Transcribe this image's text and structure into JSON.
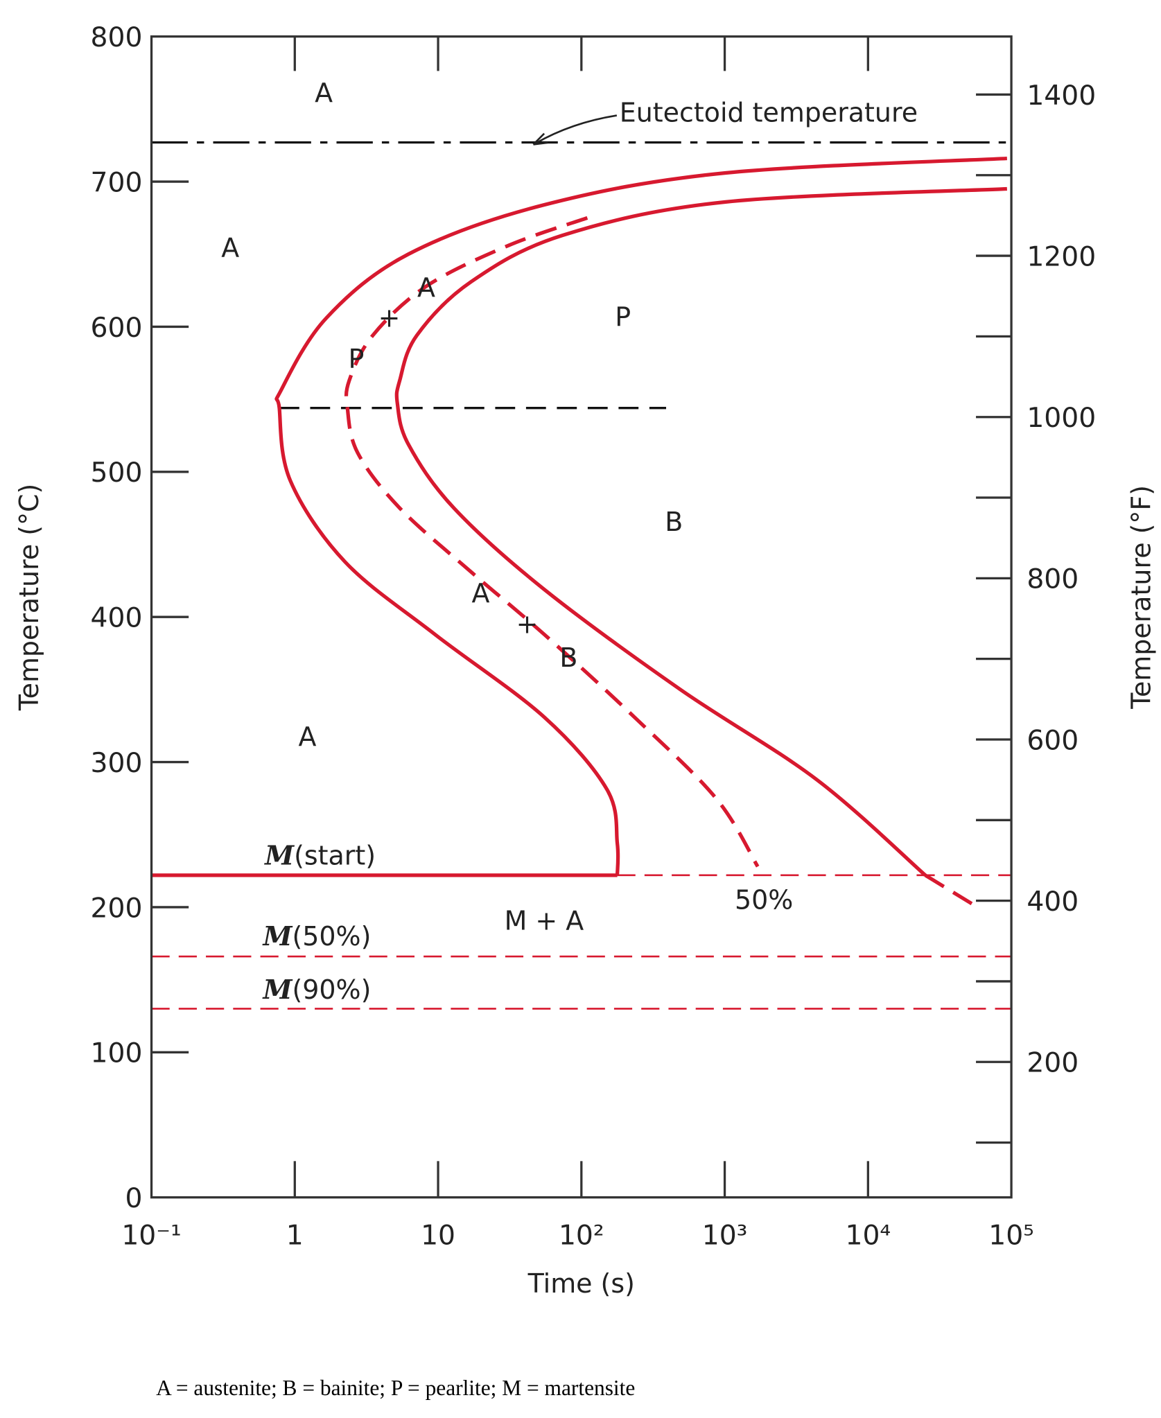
{
  "chart_data": {
    "type": "line",
    "title": "",
    "xlabel": "Time (s)",
    "ylabel": "Temperature (°C)",
    "ylabel_right": "Temperature (°F)",
    "xscale": "log",
    "xlim": [
      0.1,
      100000
    ],
    "ylim": [
      0,
      800
    ],
    "ylim_right_F": [
      32,
      1472
    ],
    "grid": false,
    "x_tick_labels": [
      "10⁻¹",
      "1",
      "10",
      "10²",
      "10³",
      "10⁴",
      "10⁵"
    ],
    "y_tick_labels": [
      "0",
      "100",
      "200",
      "300",
      "400",
      "500",
      "600",
      "700",
      "800"
    ],
    "y_right_tick_labels": [
      "200",
      "400",
      "600",
      "800",
      "1000",
      "1200",
      "1400"
    ],
    "colors": {
      "curve": "#d7192f",
      "reference": "#111111"
    },
    "series": [
      {
        "style": "solid",
        "role": "transformation start",
        "x": [
          93300,
          1014,
          55,
          6.2,
          1.66,
          0.8,
          0.78,
          0.93,
          2.24,
          9.5,
          55,
          151,
          178,
          178
        ],
        "y": [
          716,
          706,
          684,
          650,
          606,
          556,
          544,
          494,
          438,
          388,
          331,
          281,
          244,
          222
        ]
      },
      {
        "style": "solid",
        "role": "transformation finish",
        "x": [
          93300,
          1014,
          74,
          17,
          7.1,
          5.4,
          5.2,
          6.2,
          12.9,
          55,
          490,
          4370,
          25100
        ],
        "y": [
          695,
          686,
          663,
          631,
          594,
          563,
          547,
          519,
          475,
          419,
          350,
          288,
          222
        ]
      },
      {
        "style": "dashed",
        "role": "transformation finish (below M start)",
        "x": [
          25100,
          60300
        ],
        "y": [
          222,
          199
        ]
      },
      {
        "style": "dashed",
        "name": "50%",
        "x": [
          110,
          31,
          8.3,
          3.5,
          2.4,
          2.33,
          2.75,
          5.4,
          17,
          55,
          234,
          870,
          1700
        ],
        "y": [
          675,
          656,
          628,
          594,
          563,
          544,
          513,
          475,
          431,
          388,
          331,
          275,
          228
        ]
      }
    ],
    "reference_lines": [
      {
        "name": "Eutectoid temperature",
        "y": 727,
        "style": "dash-dot",
        "color": "#111111",
        "x": [
          0.1,
          100000
        ]
      },
      {
        "y": 544,
        "style": "dashed",
        "color": "#111111",
        "x": [
          0.78,
          390
        ]
      },
      {
        "name": "M(start)",
        "y": 222,
        "style": "solid",
        "color": "#d7192f",
        "x": [
          0.1,
          178
        ]
      },
      {
        "y": 222,
        "style": "dashed",
        "color": "#d7192f",
        "x": [
          178,
          100000
        ]
      },
      {
        "name": "M(50%)",
        "y": 166,
        "style": "dashed",
        "color": "#d7192f",
        "x": [
          0.1,
          100000
        ]
      },
      {
        "name": "M(90%)",
        "y": 130,
        "style": "dashed",
        "color": "#d7192f",
        "x": [
          0.1,
          100000
        ]
      }
    ],
    "annotations": {
      "eutectoid": "Eutectoid temperature",
      "a_top": "A",
      "a_left": "A",
      "a_low": "A",
      "a_plus_p_a": "A",
      "a_plus_p_plus": "+",
      "a_plus_p_p": "P",
      "p": "P",
      "b": "B",
      "a_plus_b_a": "A",
      "a_plus_b_plus": "+",
      "a_plus_b_b": "B",
      "m_start_m": "M",
      "m_start_rest": "(start)",
      "m50_m": "M",
      "m50_rest": "(50%)",
      "m90_m": "M",
      "m90_rest": "(90%)",
      "m_plus_a": "M + A",
      "pct50": "50%"
    },
    "caption": "A = austenite;  B = bainite; P = pearlite;  M = martensite"
  }
}
